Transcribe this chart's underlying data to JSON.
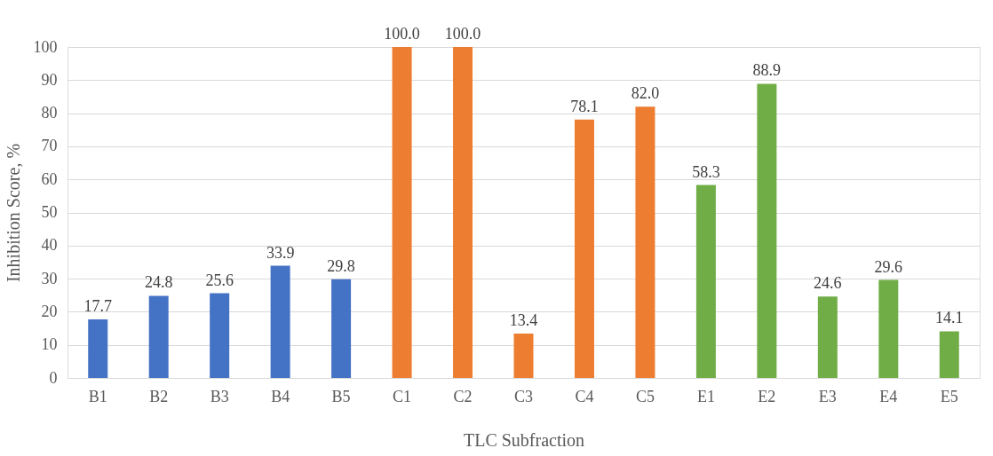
{
  "chart_data": {
    "type": "bar",
    "xlabel": "TLC Subfraction",
    "ylabel": "Inhibition Score, %",
    "categories": [
      "B1",
      "B2",
      "B3",
      "B4",
      "B5",
      "C1",
      "C2",
      "C3",
      "C4",
      "C5",
      "E1",
      "E2",
      "E3",
      "E4",
      "E5"
    ],
    "values": [
      17.7,
      24.8,
      25.6,
      33.9,
      29.8,
      100.0,
      100.0,
      13.4,
      78.1,
      82.0,
      58.3,
      88.9,
      24.6,
      29.6,
      14.1
    ],
    "value_labels": [
      "17.7",
      "24.8",
      "25.6",
      "33.9",
      "29.8",
      "100.0",
      "100.0",
      "13.4",
      "78.1",
      "82.0",
      "58.3",
      "88.9",
      "24.6",
      "29.6",
      "14.1"
    ],
    "colors": [
      "#4472c4",
      "#4472c4",
      "#4472c4",
      "#4472c4",
      "#4472c4",
      "#ed7d31",
      "#ed7d31",
      "#ed7d31",
      "#ed7d31",
      "#ed7d31",
      "#70ad47",
      "#70ad47",
      "#70ad47",
      "#70ad47",
      "#70ad47"
    ],
    "ylim": [
      0,
      100
    ],
    "yticks": [
      0,
      10,
      20,
      30,
      40,
      50,
      60,
      70,
      80,
      90,
      100
    ],
    "grid": "y"
  }
}
